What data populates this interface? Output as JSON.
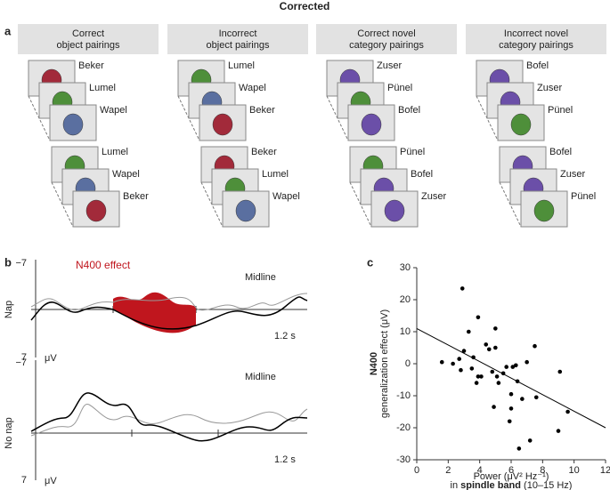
{
  "title": "Corrected",
  "panel_a": {
    "label": "a",
    "columns": [
      {
        "header_lines": [
          "Correct",
          "object pairings"
        ],
        "groups": [
          [
            "Beker",
            "Lumel",
            "Wapel"
          ],
          [
            "Lumel",
            "Wapel",
            "Beker"
          ]
        ]
      },
      {
        "header_lines": [
          "Incorrect",
          "object pairings"
        ],
        "groups": [
          [
            "Lumel",
            "Wapel",
            "Beker"
          ],
          [
            "Beker",
            "Lumel",
            "Wapel"
          ]
        ]
      },
      {
        "header_lines": [
          "Correct novel",
          "category pairings"
        ],
        "groups": [
          [
            "Zuser",
            "Pünel",
            "Bofel"
          ],
          [
            "Pünel",
            "Bofel",
            "Zuser"
          ]
        ]
      },
      {
        "header_lines": [
          "Incorrect novel",
          "category pairings"
        ],
        "groups": [
          [
            "Bofel",
            "Zuser",
            "Pünel"
          ],
          [
            "Bofel",
            "Zuser",
            "Pünel"
          ]
        ]
      }
    ]
  },
  "panel_b": {
    "label": "b",
    "effect_label": "N400 effect",
    "plots": [
      {
        "condition": "Nap",
        "location": "Midline",
        "time_label": "1.2 s",
        "y_top": "−7",
        "y_bottom": "7",
        "unit": "μV"
      },
      {
        "condition": "No nap",
        "location": "Midline",
        "time_label": "1.2 s",
        "y_top": "−7",
        "y_bottom": "7",
        "unit": "μV"
      }
    ]
  },
  "chart_data": {
    "type": "scatter",
    "panel_label": "c",
    "y_label_bold": "N400",
    "y_label": "generalization effect (μV)",
    "x_label": "Power (μV² Hz⁻¹)",
    "x_label_parts": [
      "in ",
      "spindle band",
      " (10–15 Hz)"
    ],
    "color": "#000000",
    "x": [
      1.6,
      2.3,
      2.7,
      2.9,
      3.0,
      2.8,
      3.3,
      3.5,
      3.6,
      3.8,
      3.9,
      3.9,
      4.1,
      4.4,
      4.6,
      4.8,
      4.9,
      5.0,
      5.0,
      5.1,
      5.2,
      5.5,
      5.7,
      5.9,
      6.0,
      6.0,
      6.1,
      6.3,
      6.4,
      6.5,
      6.7,
      7.0,
      7.2,
      7.5,
      7.6,
      9.0,
      9.1,
      9.6
    ],
    "y": [
      0.5,
      0,
      1.5,
      23.5,
      4,
      -2,
      10,
      -1.5,
      2,
      -6,
      -4,
      14.5,
      -4,
      6,
      4.5,
      -2.5,
      -13.5,
      11,
      5,
      -4,
      -6,
      -3,
      -1,
      -18,
      -14,
      -9.5,
      -1,
      -0.5,
      -5.5,
      -26.5,
      -11,
      0.5,
      -24,
      5.5,
      -10.5,
      -21,
      -2.5,
      -15
    ],
    "fit_line": {
      "x": [
        0,
        12
      ],
      "y": [
        11,
        -20
      ]
    },
    "xlim": [
      0,
      12
    ],
    "ylim": [
      -30,
      30
    ],
    "xticks": [
      0,
      2,
      4,
      6,
      8,
      10,
      12
    ],
    "yticks": [
      -30,
      -20,
      -10,
      0,
      10,
      20,
      30
    ]
  }
}
